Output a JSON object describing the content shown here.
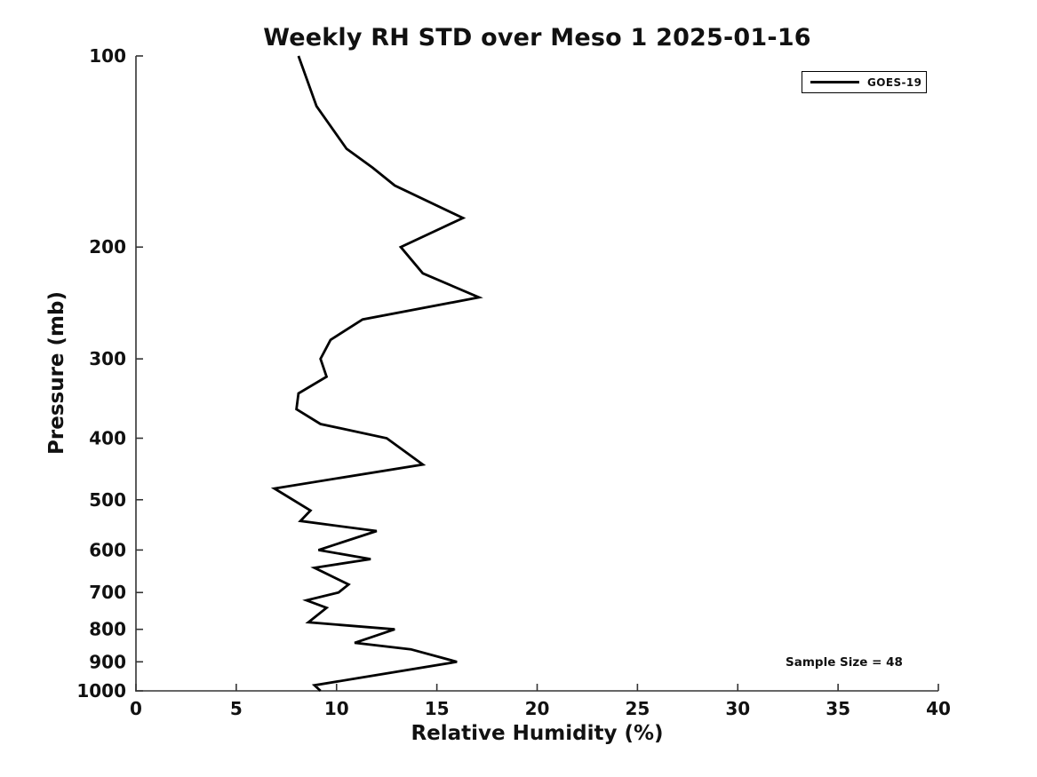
{
  "figure": {
    "background": "#ffffff",
    "text_color": "#111111",
    "axis_color": "#333333",
    "line_color": "#000000"
  },
  "chart_data": {
    "type": "line",
    "title": "Weekly RH STD over Meso 1 2025-01-16",
    "xlabel": "Relative Humidity (%)",
    "ylabel": "Pressure (mb)",
    "xlim": [
      0,
      40
    ],
    "ylim": [
      100,
      1000
    ],
    "yscale": "log",
    "y_inverted": true,
    "grid": false,
    "x_ticks": [
      0,
      5,
      10,
      15,
      20,
      25,
      30,
      35,
      40
    ],
    "y_ticks": [
      100,
      200,
      300,
      400,
      500,
      600,
      700,
      800,
      900,
      1000
    ],
    "legend": {
      "position": "upper right",
      "entries": [
        {
          "label": "GOES-19",
          "color": "#000000"
        }
      ]
    },
    "annotations": [
      {
        "text": "Sample Size = 48"
      }
    ],
    "series": [
      {
        "name": "GOES-19",
        "color": "#000000",
        "pressure_mb": [
          100,
          120,
          140,
          150,
          160,
          180,
          200,
          220,
          240,
          260,
          280,
          300,
          320,
          340,
          360,
          380,
          400,
          440,
          480,
          520,
          540,
          560,
          600,
          620,
          640,
          680,
          700,
          720,
          740,
          780,
          800,
          840,
          860,
          900,
          980,
          1000
        ],
        "rh_std_percent": [
          8.1,
          9.0,
          10.5,
          11.8,
          12.9,
          16.3,
          13.2,
          14.3,
          17.1,
          11.3,
          9.7,
          9.2,
          9.5,
          8.1,
          8.0,
          9.2,
          12.5,
          14.3,
          6.9,
          8.7,
          8.2,
          12.0,
          9.1,
          11.7,
          8.9,
          10.6,
          10.1,
          8.5,
          9.5,
          8.6,
          12.9,
          10.9,
          13.7,
          16.0,
          8.9,
          9.2
        ]
      }
    ]
  }
}
